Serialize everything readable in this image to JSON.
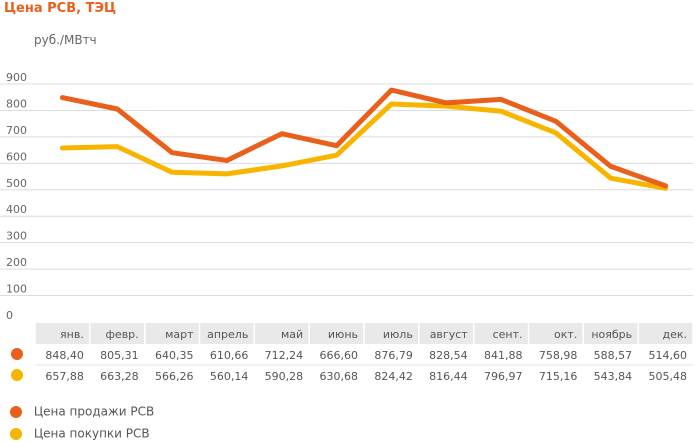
{
  "chart_data": {
    "type": "line",
    "title": "Цена РСВ, ТЭЦ",
    "ylabel": "руб./МВтч",
    "xlabel": "",
    "ylim": [
      0,
      900
    ],
    "y_ticks": [
      "0",
      "100",
      "200",
      "300",
      "400",
      "500",
      "600",
      "700",
      "800",
      "900"
    ],
    "grid": true,
    "legend_position": "bottom-left",
    "categories": [
      "янв.",
      "февр.",
      "март",
      "апрель",
      "май",
      "июнь",
      "июль",
      "август",
      "сент.",
      "окт.",
      "ноябрь",
      "дек."
    ],
    "series": [
      {
        "name": "Цена продажи РСВ",
        "color": "#e8601c",
        "values": [
          848.4,
          805.31,
          640.35,
          610.66,
          712.24,
          666.6,
          876.79,
          828.54,
          841.88,
          758.98,
          588.57,
          514.6
        ],
        "labels": [
          "848,40",
          "805,31",
          "640,35",
          "610,66",
          "712,24",
          "666,60",
          "876,79",
          "828,54",
          "841,88",
          "758,98",
          "588,57",
          "514,60"
        ]
      },
      {
        "name": "Цена покупки РСВ",
        "color": "#f7b500",
        "values": [
          657.88,
          663.28,
          566.26,
          560.14,
          590.28,
          630.68,
          824.42,
          816.44,
          796.97,
          715.16,
          543.84,
          505.48
        ],
        "labels": [
          "657,88",
          "663,28",
          "566,26",
          "560,14",
          "590,28",
          "630,68",
          "824,42",
          "816,44",
          "796,97",
          "715,16",
          "543,84",
          "505,48"
        ]
      }
    ]
  }
}
